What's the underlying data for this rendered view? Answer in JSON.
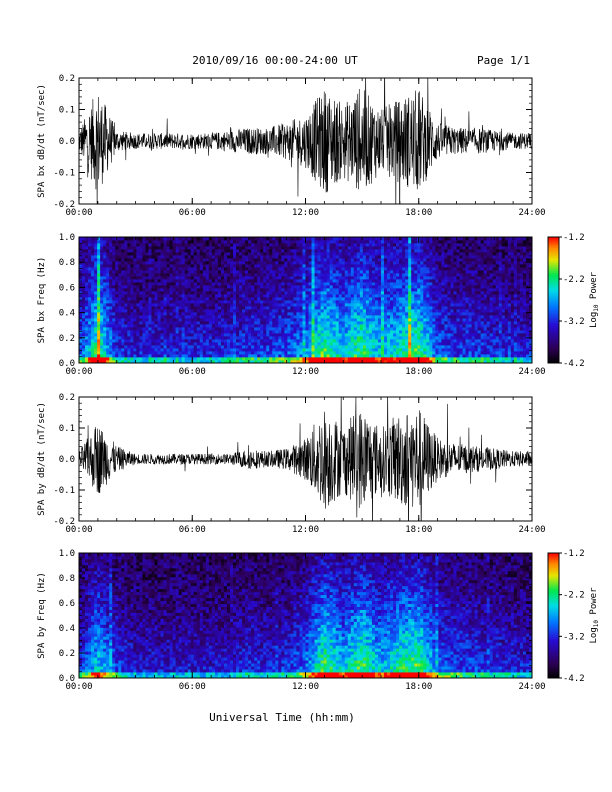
{
  "header": {
    "title": "2010/09/16  00:00-24:00 UT",
    "page_label": "Page 1/1"
  },
  "xaxis_title": "Universal Time (hh:mm)",
  "colorbar_label": "Log10 Power",
  "chart_data": [
    {
      "type": "line",
      "ylabel": "SPA bx dB/dt (nT/sec)",
      "ylim": [
        -0.2,
        0.2
      ],
      "xlim": [
        "00:00",
        "24:00"
      ],
      "x_ticks": [
        "00:00",
        "06:00",
        "12:00",
        "18:00",
        "24:00"
      ],
      "y_ticks": [
        "-0.2",
        "-0.1",
        "0.0",
        "0.1",
        "0.2"
      ],
      "series": [
        {
          "x": [
            "00:00",
            "01:00",
            "02:00",
            "03:00",
            "04:00",
            "05:00",
            "06:00",
            "07:00",
            "08:00",
            "09:00",
            "10:00",
            "11:00",
            "12:00",
            "13:00",
            "14:00",
            "15:00",
            "16:00",
            "17:00",
            "18:00",
            "19:00",
            "20:00",
            "21:00",
            "22:00",
            "23:00",
            "24:00"
          ],
          "amplitude": [
            0.04,
            0.2,
            0.04,
            0.03,
            0.03,
            0.03,
            0.03,
            0.03,
            0.04,
            0.05,
            0.05,
            0.07,
            0.1,
            0.2,
            0.14,
            0.2,
            0.12,
            0.16,
            0.2,
            0.07,
            0.05,
            0.05,
            0.04,
            0.03,
            0.03
          ]
        }
      ]
    },
    {
      "type": "heatmap",
      "ylabel": "SPA bx Freq (Hz)",
      "ylim": [
        0.0,
        1.0
      ],
      "xlim": [
        "00:00",
        "24:00"
      ],
      "x_ticks": [
        "00:00",
        "06:00",
        "12:00",
        "18:00",
        "24:00"
      ],
      "y_ticks": [
        "0.0",
        "0.2",
        "0.4",
        "0.6",
        "0.8",
        "1.0"
      ],
      "color_range": [
        -4.2,
        -1.2
      ],
      "colorbar_ticks": [
        "-1.2",
        "-2.2",
        "-3.2",
        "-4.2"
      ]
    },
    {
      "type": "line",
      "ylabel": "SPA by dB/dt (nT/sec)",
      "ylim": [
        -0.2,
        0.2
      ],
      "xlim": [
        "00:00",
        "24:00"
      ],
      "x_ticks": [
        "00:00",
        "06:00",
        "12:00",
        "18:00",
        "24:00"
      ],
      "y_ticks": [
        "-0.2",
        "-0.1",
        "0.0",
        "0.1",
        "0.2"
      ],
      "series": [
        {
          "x": [
            "00:00",
            "01:00",
            "02:00",
            "03:00",
            "04:00",
            "05:00",
            "06:00",
            "07:00",
            "08:00",
            "09:00",
            "10:00",
            "11:00",
            "12:00",
            "13:00",
            "14:00",
            "15:00",
            "16:00",
            "17:00",
            "18:00",
            "19:00",
            "20:00",
            "21:00",
            "22:00",
            "23:00",
            "24:00"
          ],
          "amplitude": [
            0.03,
            0.14,
            0.05,
            0.02,
            0.02,
            0.02,
            0.02,
            0.02,
            0.02,
            0.04,
            0.03,
            0.04,
            0.08,
            0.2,
            0.13,
            0.2,
            0.12,
            0.18,
            0.2,
            0.08,
            0.06,
            0.05,
            0.04,
            0.03,
            0.03
          ]
        }
      ]
    },
    {
      "type": "heatmap",
      "ylabel": "SPA by Freq (Hz)",
      "ylim": [
        0.0,
        1.0
      ],
      "xlim": [
        "00:00",
        "24:00"
      ],
      "x_ticks": [
        "00:00",
        "06:00",
        "12:00",
        "18:00",
        "24:00"
      ],
      "y_ticks": [
        "0.0",
        "0.2",
        "0.4",
        "0.6",
        "0.8",
        "1.0"
      ],
      "color_range": [
        -4.2,
        -1.2
      ],
      "colorbar_ticks": [
        "-1.2",
        "-2.2",
        "-3.2",
        "-4.2"
      ]
    }
  ]
}
